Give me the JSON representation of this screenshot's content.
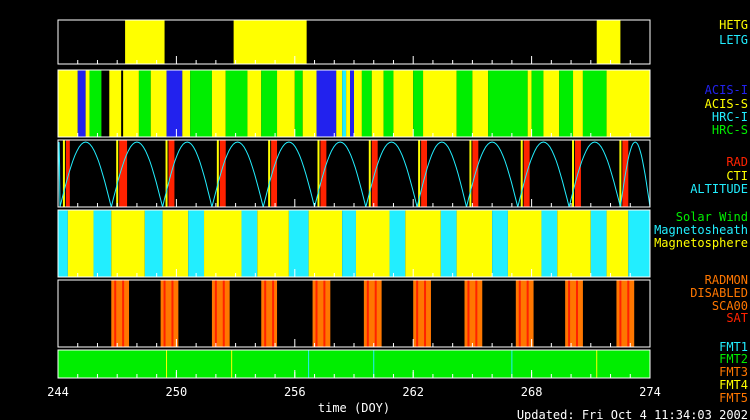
{
  "colors": {
    "background": "#000000",
    "frame": "#ffffff",
    "yellow": "#ffff00",
    "green": "#00ee00",
    "blue": "#2222ee",
    "cyan": "#22eeff",
    "red": "#ff2200",
    "orange": "#ff7700",
    "white": "#ffffff"
  },
  "chart_data": {
    "type": "timeline",
    "xlabel": "time (DOY)",
    "xlim": [
      244,
      274
    ],
    "xticks": [
      244,
      250,
      256,
      262,
      268,
      274
    ],
    "updated_text": "Updated: Fri Oct  4 11:34:03 2002",
    "panels": [
      {
        "id": "grating",
        "legend": [
          {
            "label": "HETG",
            "color": "#ffff00"
          },
          {
            "label": "LETG",
            "color": "#22eeff"
          }
        ],
        "half_height_intervals": [
          {
            "name": "HETG",
            "color": "#ffff00",
            "start": 244.0,
            "end": 244.0
          }
        ],
        "intervals": [
          {
            "name": "HETG",
            "color": "#ffff00",
            "start": 247.4,
            "end": 249.4
          },
          {
            "name": "HETG",
            "color": "#ffff00",
            "start": 252.9,
            "end": 256.6
          },
          {
            "name": "HETG",
            "color": "#ffff00",
            "start": 271.3,
            "end": 272.5
          }
        ]
      },
      {
        "id": "instrument",
        "legend": [
          {
            "label": "ACIS-I",
            "color": "#2222ee"
          },
          {
            "label": "ACIS-S",
            "color": "#ffff00"
          },
          {
            "label": "HRC-I",
            "color": "#22eeff"
          },
          {
            "label": "HRC-S",
            "color": "#00ee00"
          }
        ],
        "intervals": [
          {
            "name": "ACIS-S",
            "color": "#ffff00",
            "start": 244.0,
            "end": 245.0
          },
          {
            "name": "ACIS-I",
            "color": "#2222ee",
            "start": 245.0,
            "end": 245.4
          },
          {
            "name": "ACIS-S",
            "color": "#ffff00",
            "start": 245.4,
            "end": 245.6
          },
          {
            "name": "HRC-S",
            "color": "#00ee00",
            "start": 245.6,
            "end": 246.2
          },
          {
            "name": "ACIS-S",
            "color": "#ffff00",
            "start": 246.6,
            "end": 247.2
          },
          {
            "name": "ACIS-S",
            "color": "#ffff00",
            "start": 247.3,
            "end": 248.1
          },
          {
            "name": "HRC-S",
            "color": "#00ee00",
            "start": 248.1,
            "end": 248.7
          },
          {
            "name": "ACIS-S",
            "color": "#ffff00",
            "start": 248.7,
            "end": 249.5
          },
          {
            "name": "ACIS-I",
            "color": "#2222ee",
            "start": 249.5,
            "end": 250.3
          },
          {
            "name": "ACIS-S",
            "color": "#ffff00",
            "start": 250.3,
            "end": 250.7
          },
          {
            "name": "HRC-S",
            "color": "#00ee00",
            "start": 250.7,
            "end": 251.8
          },
          {
            "name": "ACIS-S",
            "color": "#ffff00",
            "start": 251.8,
            "end": 252.5
          },
          {
            "name": "HRC-S",
            "color": "#00ee00",
            "start": 252.5,
            "end": 253.6
          },
          {
            "name": "ACIS-S",
            "color": "#ffff00",
            "start": 253.6,
            "end": 254.3
          },
          {
            "name": "HRC-S",
            "color": "#00ee00",
            "start": 254.3,
            "end": 255.1
          },
          {
            "name": "ACIS-S",
            "color": "#ffff00",
            "start": 255.1,
            "end": 256.0
          },
          {
            "name": "HRC-S",
            "color": "#00ee00",
            "start": 256.0,
            "end": 256.4
          },
          {
            "name": "ACIS-S",
            "color": "#ffff00",
            "start": 256.4,
            "end": 257.1
          },
          {
            "name": "ACIS-I",
            "color": "#2222ee",
            "start": 257.1,
            "end": 258.1
          },
          {
            "name": "ACIS-S",
            "color": "#ffff00",
            "start": 258.1,
            "end": 258.4
          },
          {
            "name": "HRC-I",
            "color": "#22eeff",
            "start": 258.4,
            "end": 258.6
          },
          {
            "name": "ACIS-S",
            "color": "#ffff00",
            "start": 258.6,
            "end": 258.8
          },
          {
            "name": "ACIS-I",
            "color": "#2222ee",
            "start": 258.8,
            "end": 259.0
          },
          {
            "name": "ACIS-S",
            "color": "#ffff00",
            "start": 259.0,
            "end": 259.4
          },
          {
            "name": "HRC-S",
            "color": "#00ee00",
            "start": 259.4,
            "end": 259.9
          },
          {
            "name": "ACIS-S",
            "color": "#ffff00",
            "start": 259.9,
            "end": 260.5
          },
          {
            "name": "HRC-S",
            "color": "#00ee00",
            "start": 260.5,
            "end": 261.0
          },
          {
            "name": "ACIS-S",
            "color": "#ffff00",
            "start": 261.0,
            "end": 262.0
          },
          {
            "name": "HRC-S",
            "color": "#00ee00",
            "start": 262.0,
            "end": 262.5
          },
          {
            "name": "ACIS-S",
            "color": "#ffff00",
            "start": 262.5,
            "end": 264.2
          },
          {
            "name": "HRC-S",
            "color": "#00ee00",
            "start": 264.2,
            "end": 265.0
          },
          {
            "name": "ACIS-S",
            "color": "#ffff00",
            "start": 265.0,
            "end": 265.8
          },
          {
            "name": "HRC-S",
            "color": "#00ee00",
            "start": 265.8,
            "end": 267.8
          },
          {
            "name": "ACIS-S",
            "color": "#ffff00",
            "start": 267.8,
            "end": 268.0
          },
          {
            "name": "HRC-S",
            "color": "#00ee00",
            "start": 268.0,
            "end": 268.6
          },
          {
            "name": "ACIS-S",
            "color": "#ffff00",
            "start": 268.6,
            "end": 269.4
          },
          {
            "name": "HRC-S",
            "color": "#00ee00",
            "start": 269.4,
            "end": 270.1
          },
          {
            "name": "ACIS-S",
            "color": "#ffff00",
            "start": 270.1,
            "end": 270.6
          },
          {
            "name": "HRC-S",
            "color": "#00ee00",
            "start": 270.6,
            "end": 271.8
          },
          {
            "name": "ACIS-S",
            "color": "#ffff00",
            "start": 271.8,
            "end": 274.0
          }
        ]
      },
      {
        "id": "radiation",
        "legend": [
          {
            "label": "RAD",
            "color": "#ff2200"
          },
          {
            "label": "CTI",
            "color": "#ffff00"
          },
          {
            "label": "ALTITUDE",
            "color": "#22eeff"
          }
        ],
        "intervals": [
          {
            "name": "RAD",
            "color": "#ff2200",
            "start": 244.4,
            "end": 244.6
          },
          {
            "name": "RAD",
            "color": "#ff2200",
            "start": 247.1,
            "end": 247.5
          },
          {
            "name": "RAD",
            "color": "#ff2200",
            "start": 249.6,
            "end": 249.9
          },
          {
            "name": "RAD",
            "color": "#ff2200",
            "start": 252.2,
            "end": 252.5
          },
          {
            "name": "RAD",
            "color": "#ff2200",
            "start": 254.8,
            "end": 255.1
          },
          {
            "name": "RAD",
            "color": "#ff2200",
            "start": 257.3,
            "end": 257.6
          },
          {
            "name": "RAD",
            "color": "#ff2200",
            "start": 259.9,
            "end": 260.2
          },
          {
            "name": "RAD",
            "color": "#ff2200",
            "start": 262.4,
            "end": 262.7
          },
          {
            "name": "RAD",
            "color": "#ff2200",
            "start": 265.0,
            "end": 265.3
          },
          {
            "name": "RAD",
            "color": "#ff2200",
            "start": 267.6,
            "end": 267.9
          },
          {
            "name": "RAD",
            "color": "#ff2200",
            "start": 270.2,
            "end": 270.5
          },
          {
            "name": "RAD",
            "color": "#ff2200",
            "start": 272.6,
            "end": 272.9
          }
        ],
        "cti_markers": [
          244.3,
          247.0,
          249.5,
          252.1,
          254.7,
          257.2,
          259.8,
          262.3,
          264.9,
          267.5,
          270.1,
          272.5
        ],
        "altitude_perigees": [
          244.1,
          246.7,
          249.3,
          251.8,
          254.4,
          257.0,
          259.6,
          262.2,
          264.7,
          267.3,
          269.9,
          272.5
        ],
        "altitude_curve": {
          "period_days": 2.58,
          "max": 1.0
        }
      },
      {
        "id": "region",
        "legend": [
          {
            "label": "Solar Wind",
            "color": "#00ee00"
          },
          {
            "label": "Magnetosheath",
            "color": "#22eeff"
          },
          {
            "label": "Magnetosphere",
            "color": "#ffff00"
          }
        ],
        "intervals": [
          {
            "name": "Magnetosheath",
            "color": "#22eeff",
            "start": 244.0,
            "end": 244.5
          },
          {
            "name": "Magnetosphere",
            "color": "#ffff00",
            "start": 244.5,
            "end": 245.8
          },
          {
            "name": "Magnetosheath",
            "color": "#22eeff",
            "start": 245.8,
            "end": 246.7
          },
          {
            "name": "Magnetosphere",
            "color": "#ffff00",
            "start": 246.7,
            "end": 248.4
          },
          {
            "name": "Magnetosheath",
            "color": "#22eeff",
            "start": 248.4,
            "end": 249.3
          },
          {
            "name": "Magnetosphere",
            "color": "#ffff00",
            "start": 249.3,
            "end": 250.6
          },
          {
            "name": "Magnetosheath",
            "color": "#22eeff",
            "start": 250.6,
            "end": 251.4
          },
          {
            "name": "Magnetosphere",
            "color": "#ffff00",
            "start": 251.4,
            "end": 253.3
          },
          {
            "name": "Magnetosheath",
            "color": "#22eeff",
            "start": 253.3,
            "end": 254.1
          },
          {
            "name": "Magnetosphere",
            "color": "#ffff00",
            "start": 254.1,
            "end": 255.7
          },
          {
            "name": "Magnetosheath",
            "color": "#22eeff",
            "start": 255.7,
            "end": 256.7
          },
          {
            "name": "Magnetosphere",
            "color": "#ffff00",
            "start": 256.7,
            "end": 258.4
          },
          {
            "name": "Magnetosheath",
            "color": "#22eeff",
            "start": 258.4,
            "end": 259.1
          },
          {
            "name": "Magnetosphere",
            "color": "#ffff00",
            "start": 259.1,
            "end": 260.8
          },
          {
            "name": "Magnetosheath",
            "color": "#22eeff",
            "start": 260.8,
            "end": 261.6
          },
          {
            "name": "Magnetosphere",
            "color": "#ffff00",
            "start": 261.6,
            "end": 263.4
          },
          {
            "name": "Magnetosheath",
            "color": "#22eeff",
            "start": 263.4,
            "end": 264.2
          },
          {
            "name": "Magnetosphere",
            "color": "#ffff00",
            "start": 264.2,
            "end": 266.0
          },
          {
            "name": "Magnetosheath",
            "color": "#22eeff",
            "start": 266.0,
            "end": 266.8
          },
          {
            "name": "Magnetosphere",
            "color": "#ffff00",
            "start": 266.8,
            "end": 268.5
          },
          {
            "name": "Magnetosheath",
            "color": "#22eeff",
            "start": 268.5,
            "end": 269.3
          },
          {
            "name": "Magnetosphere",
            "color": "#ffff00",
            "start": 269.3,
            "end": 271.0
          },
          {
            "name": "Magnetosheath",
            "color": "#22eeff",
            "start": 271.0,
            "end": 271.8
          },
          {
            "name": "Magnetosphere",
            "color": "#ffff00",
            "start": 271.8,
            "end": 272.9
          },
          {
            "name": "Magnetosheath",
            "color": "#22eeff",
            "start": 272.9,
            "end": 274.0
          }
        ]
      },
      {
        "id": "radmon",
        "legend": [
          {
            "label": "RADMON",
            "color": "#ff7700"
          },
          {
            "label": "DISABLED",
            "color": "#ff7700"
          },
          {
            "label": "SCA00",
            "color": "#ff7700"
          },
          {
            "label": "SAT",
            "color": "#ff2200"
          }
        ],
        "intervals": [
          {
            "name": "DISABLED",
            "color": "#ff7700",
            "start": 246.7,
            "end": 247.6
          },
          {
            "name": "DISABLED",
            "color": "#ff7700",
            "start": 249.2,
            "end": 250.1
          },
          {
            "name": "DISABLED",
            "color": "#ff7700",
            "start": 251.8,
            "end": 252.7
          },
          {
            "name": "DISABLED",
            "color": "#ff7700",
            "start": 254.3,
            "end": 255.1
          },
          {
            "name": "DISABLED",
            "color": "#ff7700",
            "start": 256.9,
            "end": 257.8
          },
          {
            "name": "DISABLED",
            "color": "#ff7700",
            "start": 259.5,
            "end": 260.4
          },
          {
            "name": "DISABLED",
            "color": "#ff7700",
            "start": 262.0,
            "end": 262.9
          },
          {
            "name": "DISABLED",
            "color": "#ff7700",
            "start": 264.6,
            "end": 265.5
          },
          {
            "name": "DISABLED",
            "color": "#ff7700",
            "start": 267.2,
            "end": 268.1
          },
          {
            "name": "DISABLED",
            "color": "#ff7700",
            "start": 269.7,
            "end": 270.6
          },
          {
            "name": "DISABLED",
            "color": "#ff7700",
            "start": 272.3,
            "end": 273.2
          }
        ],
        "sat_markers": [
          246.9,
          247.3,
          249.4,
          249.8,
          252.0,
          252.4,
          254.5,
          254.9,
          257.1,
          257.5,
          259.7,
          260.1,
          262.2,
          262.6,
          264.8,
          265.2,
          267.4,
          267.8,
          269.9,
          270.3,
          272.5,
          272.9
        ]
      },
      {
        "id": "format",
        "legend": [
          {
            "label": "FMT1",
            "color": "#22eeff"
          },
          {
            "label": "FMT2",
            "color": "#00ee00"
          },
          {
            "label": "FMT3",
            "color": "#ff7700"
          },
          {
            "label": "FMT4",
            "color": "#ffff00"
          },
          {
            "label": "FMT5",
            "color": "#ff7700"
          }
        ],
        "intervals": [
          {
            "name": "FMT2",
            "color": "#00ee00",
            "start": 244.0,
            "end": 274.0
          }
        ],
        "markers": [
          {
            "name": "FMT1",
            "color": "#22eeff",
            "at": 256.7
          },
          {
            "name": "FMT1",
            "color": "#22eeff",
            "at": 260.0
          },
          {
            "name": "FMT1",
            "color": "#22eeff",
            "at": 267.0
          },
          {
            "name": "FMT4",
            "color": "#ffff00",
            "at": 249.5
          },
          {
            "name": "FMT4",
            "color": "#ffff00",
            "at": 252.8
          },
          {
            "name": "FMT4",
            "color": "#ffff00",
            "at": 271.3
          }
        ]
      }
    ]
  }
}
